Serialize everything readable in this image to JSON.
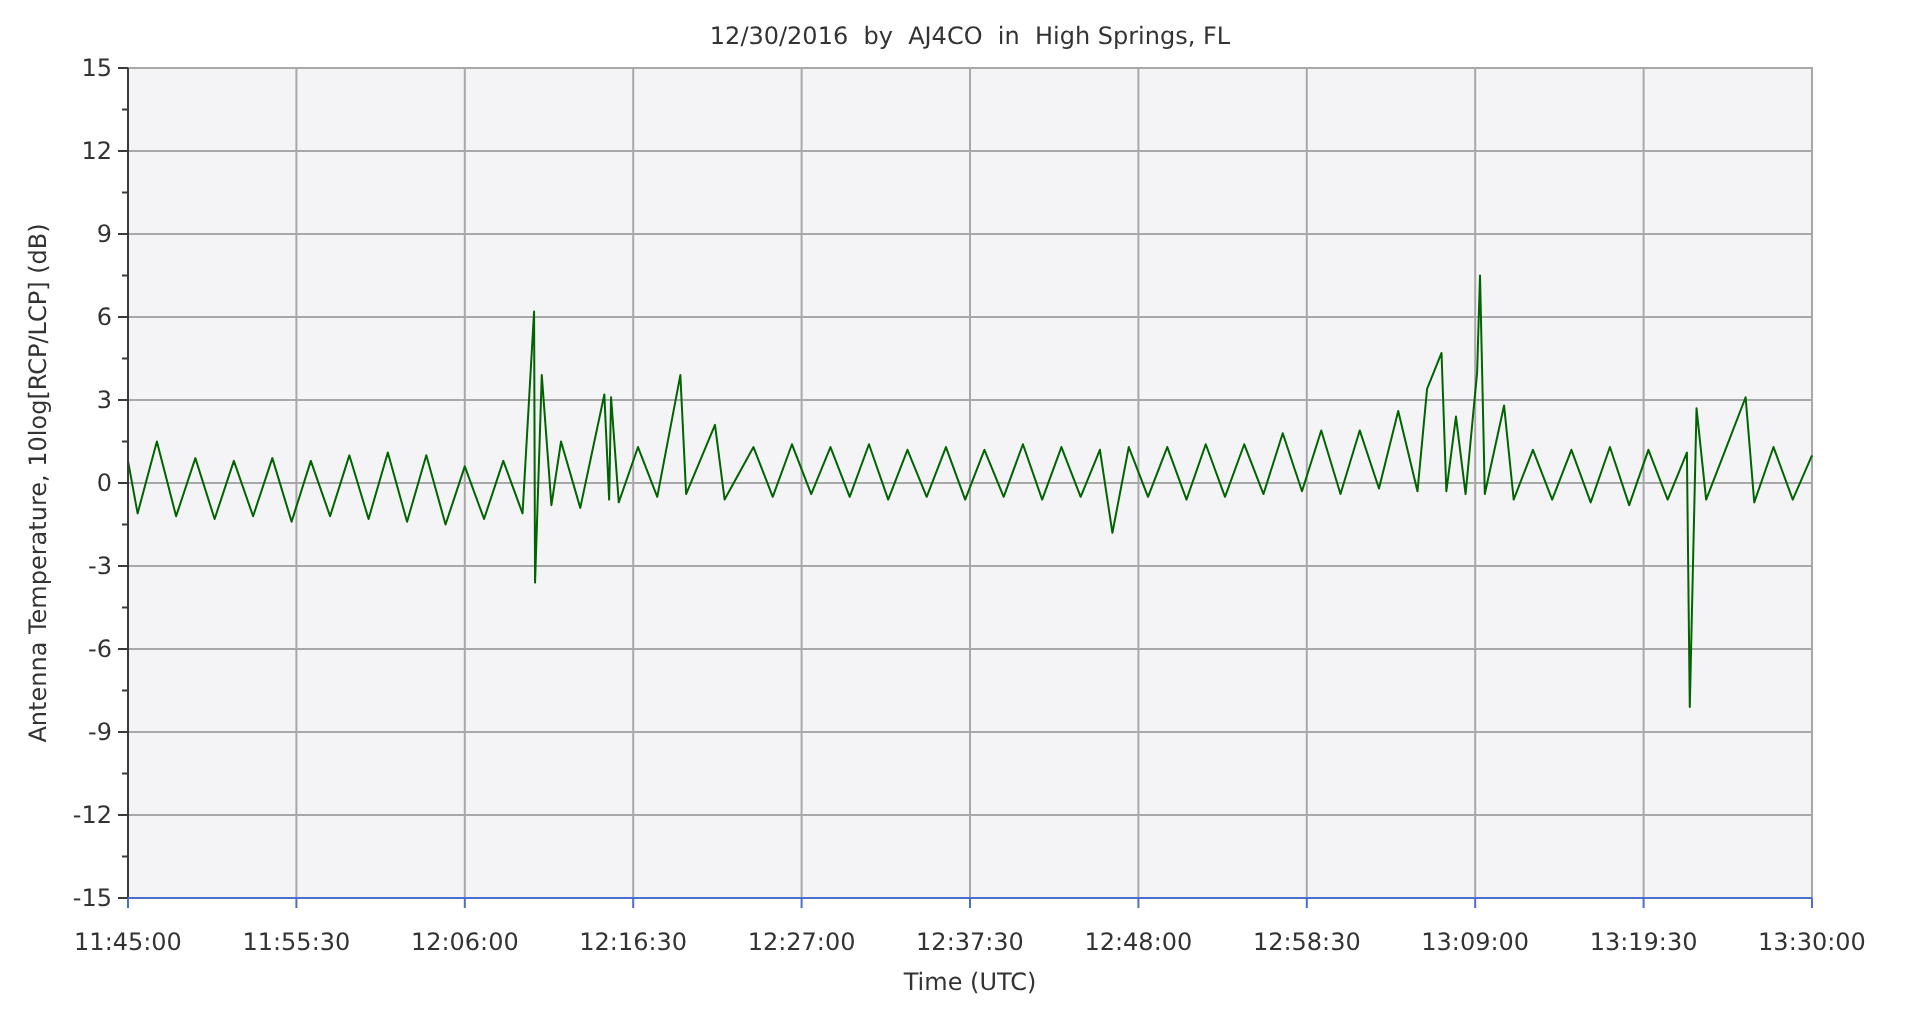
{
  "chart_data": {
    "type": "line",
    "title": "12/30/2016  by  AJ4CO  in  High Springs, FL",
    "xlabel": "Time (UTC)",
    "ylabel": "Antenna Temperature, 10log[RCP/LCP] (dB)",
    "xlim": [
      11.75,
      13.5
    ],
    "xticks": [
      {
        "value": 11.75,
        "label": "11:45:00"
      },
      {
        "value": 11.925,
        "label": "11:55:30"
      },
      {
        "value": 12.1,
        "label": "12:06:00"
      },
      {
        "value": 12.275,
        "label": "12:16:30"
      },
      {
        "value": 12.45,
        "label": "12:27:00"
      },
      {
        "value": 12.625,
        "label": "12:37:30"
      },
      {
        "value": 12.8,
        "label": "12:48:00"
      },
      {
        "value": 12.975,
        "label": "12:58:30"
      },
      {
        "value": 13.15,
        "label": "13:09:00"
      },
      {
        "value": 13.325,
        "label": "13:19:30"
      },
      {
        "value": 13.5,
        "label": "13:30:00"
      }
    ],
    "ylim": [
      -15,
      15
    ],
    "yticks": [
      -15,
      {
        "value": -13.5,
        "label": null
      },
      -12,
      {
        "value": -10.5,
        "label": null
      },
      -9,
      {
        "value": -7.5,
        "label": null
      },
      -6,
      {
        "value": -4.5,
        "label": null
      },
      -3,
      {
        "value": -1.5,
        "label": null
      },
      0,
      {
        "value": 1.5,
        "label": null
      },
      3,
      {
        "value": 4.5,
        "label": null
      },
      6,
      {
        "value": 7.5,
        "label": null
      },
      9,
      {
        "value": 10.5,
        "label": null
      },
      12,
      {
        "value": 13.5,
        "label": null
      },
      15
    ],
    "grid": true,
    "marker": "none",
    "line_style": "solid",
    "series": [
      {
        "color": "#006400",
        "x": [
          11.75,
          11.76,
          11.78,
          11.8,
          11.82,
          11.84,
          11.86,
          11.88,
          11.9,
          11.92,
          11.94,
          11.96,
          11.98,
          12.0,
          12.02,
          12.04,
          12.06,
          12.08,
          12.1,
          12.12,
          12.14,
          12.16,
          12.172,
          12.173,
          12.18,
          12.19,
          12.2,
          12.22,
          12.245,
          12.25,
          12.252,
          12.26,
          12.28,
          12.3,
          12.324,
          12.33,
          12.36,
          12.37,
          12.4,
          12.42,
          12.44,
          12.46,
          12.48,
          12.5,
          12.52,
          12.54,
          12.56,
          12.58,
          12.6,
          12.62,
          12.64,
          12.66,
          12.68,
          12.7,
          12.72,
          12.74,
          12.76,
          12.773,
          12.79,
          12.81,
          12.83,
          12.85,
          12.87,
          12.89,
          12.91,
          12.93,
          12.95,
          12.97,
          12.99,
          13.01,
          13.03,
          13.05,
          13.07,
          13.09,
          13.1,
          13.115,
          13.12,
          13.13,
          13.14,
          13.152,
          13.155,
          13.16,
          13.18,
          13.19,
          13.21,
          13.23,
          13.25,
          13.27,
          13.29,
          13.31,
          13.33,
          13.35,
          13.37,
          13.373,
          13.38,
          13.39,
          13.41,
          13.431,
          13.44,
          13.46,
          13.48,
          13.5
        ],
        "values": [
          0.8,
          -1.1,
          1.5,
          -1.2,
          0.9,
          -1.3,
          0.8,
          -1.2,
          0.9,
          -1.4,
          0.8,
          -1.2,
          1.0,
          -1.3,
          1.1,
          -1.4,
          1.0,
          -1.5,
          0.6,
          -1.3,
          0.8,
          -1.1,
          6.2,
          -3.6,
          3.9,
          -0.8,
          1.5,
          -0.9,
          3.2,
          -0.6,
          3.1,
          -0.7,
          1.3,
          -0.5,
          3.9,
          -0.4,
          2.1,
          -0.6,
          1.3,
          -0.5,
          1.4,
          -0.4,
          1.3,
          -0.5,
          1.4,
          -0.6,
          1.2,
          -0.5,
          1.3,
          -0.6,
          1.2,
          -0.5,
          1.4,
          -0.6,
          1.3,
          -0.5,
          1.2,
          -1.8,
          1.3,
          -0.5,
          1.3,
          -0.6,
          1.4,
          -0.5,
          1.4,
          -0.4,
          1.8,
          -0.3,
          1.9,
          -0.4,
          1.9,
          -0.2,
          2.6,
          -0.3,
          3.4,
          4.7,
          -0.3,
          2.4,
          -0.4,
          4.0,
          7.5,
          -0.4,
          2.8,
          -0.6,
          1.2,
          -0.6,
          1.2,
          -0.7,
          1.3,
          -0.8,
          1.2,
          -0.6,
          1.1,
          -8.1,
          2.7,
          -0.6,
          1.2,
          3.1,
          -0.7,
          1.3,
          -0.6,
          1.0
        ]
      }
    ]
  }
}
